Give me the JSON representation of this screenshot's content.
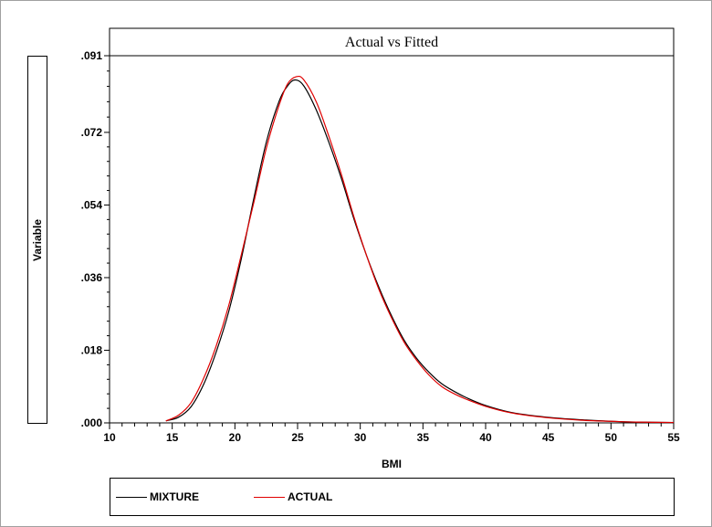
{
  "chart_data": {
    "type": "line",
    "title": "Actual vs Fitted",
    "xlabel": "BMI",
    "ylabel": "Variable",
    "xlim": [
      10,
      55
    ],
    "ylim": [
      0,
      0.091
    ],
    "xticks": [
      "10",
      "15",
      "20",
      "25",
      "30",
      "35",
      "40",
      "45",
      "50",
      "55"
    ],
    "yticks": [
      ".000",
      ".018",
      ".036",
      ".054",
      ".072",
      ".091"
    ],
    "ytick_values": [
      0,
      0.018,
      0.036,
      0.054,
      0.072,
      0.091
    ],
    "grid": false,
    "legend_position": "bottom",
    "series": [
      {
        "name": "MIXTURE",
        "color": "#000000",
        "x": [
          14.5,
          15.5,
          16.5,
          17.5,
          18.5,
          19.5,
          20.5,
          21.5,
          22.5,
          23.5,
          24.2,
          24.8,
          25.5,
          26.5,
          27.5,
          28.5,
          29.5,
          30.5,
          31.5,
          32.5,
          33.5,
          34.5,
          35.5,
          36.5,
          37.5,
          38.5,
          40,
          42,
          44,
          46,
          48,
          50,
          52,
          55
        ],
        "y": [
          0.0005,
          0.0014,
          0.004,
          0.0095,
          0.0175,
          0.0275,
          0.0405,
          0.0555,
          0.0695,
          0.0795,
          0.0835,
          0.085,
          0.0835,
          0.0775,
          0.0695,
          0.0605,
          0.0505,
          0.0415,
          0.0335,
          0.0265,
          0.0205,
          0.016,
          0.0125,
          0.0097,
          0.0078,
          0.0062,
          0.0043,
          0.0026,
          0.0017,
          0.0011,
          0.0007,
          0.0004,
          0.0002,
          0.0001
        ]
      },
      {
        "name": "ACTUAL",
        "color": "#e00000",
        "x": [
          14.5,
          15.5,
          16.5,
          17.5,
          18.5,
          19.5,
          20.5,
          21.5,
          22.5,
          23.5,
          24.2,
          24.9,
          25.5,
          26.5,
          27.5,
          28.5,
          29.5,
          30.5,
          31.5,
          32.5,
          33.5,
          34.5,
          35.5,
          36.5,
          37.5,
          38.5,
          40,
          42,
          44,
          46,
          48,
          50,
          52,
          55
        ],
        "y": [
          0.0005,
          0.0019,
          0.005,
          0.011,
          0.019,
          0.029,
          0.0415,
          0.0545,
          0.068,
          0.0785,
          0.084,
          0.0858,
          0.085,
          0.0795,
          0.071,
          0.0615,
          0.051,
          0.0415,
          0.033,
          0.026,
          0.02,
          0.0155,
          0.0118,
          0.009,
          0.0072,
          0.0058,
          0.0041,
          0.0025,
          0.0016,
          0.001,
          0.0006,
          0.0004,
          0.0002,
          0.0001
        ]
      }
    ]
  }
}
